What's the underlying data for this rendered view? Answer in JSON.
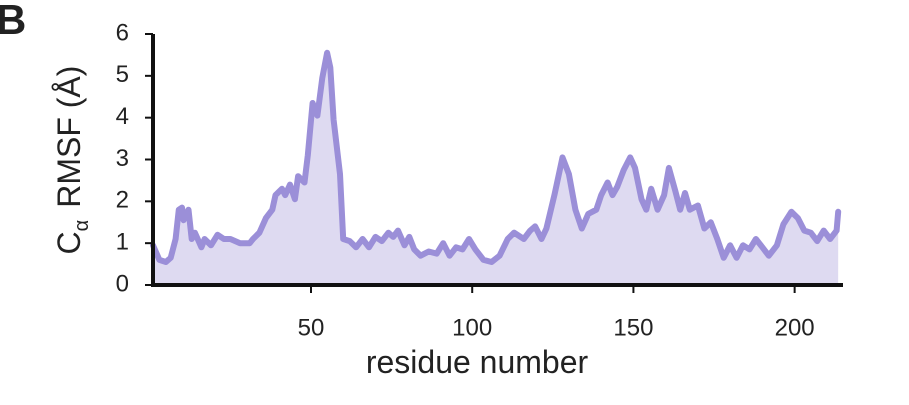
{
  "chart_data": {
    "type": "area_line",
    "panel_label": "B",
    "xlabel": "residue number",
    "ylabel": {
      "text": "C",
      "subscript": "α",
      "rest": "RMSF (Å)"
    },
    "xlim": [
      1,
      215
    ],
    "ylim": [
      0,
      6
    ],
    "xticks": [
      50,
      100,
      150,
      200
    ],
    "yticks": [
      0,
      1,
      2,
      3,
      4,
      5,
      6
    ],
    "color": "#9b8fd8",
    "fill_color": "#dedaf1",
    "x": [
      1,
      3,
      5,
      6.5,
      8,
      9,
      10,
      10.5,
      12,
      13,
      14,
      16,
      17,
      19,
      21,
      23,
      25,
      28,
      31,
      32,
      34,
      36,
      38,
      39,
      41,
      42,
      43.5,
      45,
      46,
      48,
      49,
      50.5,
      52,
      53.5,
      55,
      56,
      57,
      59,
      60,
      62,
      64,
      66,
      68,
      70,
      72,
      74,
      75.5,
      77,
      79,
      80.5,
      82,
      84,
      86.5,
      89,
      91,
      93,
      95,
      97,
      99,
      101,
      103.5,
      106,
      108.5,
      111,
      113,
      116,
      118,
      119.5,
      121.5,
      123,
      125.5,
      128,
      130,
      132,
      134,
      136,
      138.5,
      140,
      142,
      143.5,
      145,
      147,
      149,
      150.5,
      152.5,
      154,
      155.5,
      157.5,
      159.5,
      161,
      163,
      164.5,
      166,
      167.5,
      170,
      172,
      174,
      176,
      178,
      180,
      182,
      184,
      186,
      188,
      190,
      192,
      194.5,
      196.5,
      199,
      201,
      203,
      205,
      207,
      209,
      211,
      213,
      213.5
    ],
    "values": [
      0.95,
      0.6,
      0.55,
      0.65,
      1.1,
      1.8,
      1.85,
      1.55,
      1.8,
      1.1,
      1.25,
      0.9,
      1.1,
      0.95,
      1.2,
      1.1,
      1.1,
      1.0,
      1.0,
      1.1,
      1.25,
      1.6,
      1.8,
      2.15,
      2.3,
      2.15,
      2.4,
      2.05,
      2.6,
      2.45,
      3.1,
      4.35,
      4.05,
      4.95,
      5.55,
      5.2,
      3.95,
      2.65,
      1.1,
      1.05,
      0.9,
      1.1,
      0.9,
      1.15,
      1.05,
      1.25,
      1.15,
      1.3,
      0.95,
      1.15,
      0.85,
      0.7,
      0.8,
      0.75,
      1.0,
      0.7,
      0.9,
      0.85,
      1.1,
      0.85,
      0.6,
      0.55,
      0.7,
      1.1,
      1.25,
      1.1,
      1.3,
      1.4,
      1.1,
      1.35,
      2.15,
      3.05,
      2.65,
      1.8,
      1.35,
      1.7,
      1.8,
      2.15,
      2.45,
      2.15,
      2.35,
      2.75,
      3.05,
      2.8,
      2.05,
      1.8,
      2.3,
      1.8,
      2.15,
      2.8,
      2.25,
      1.8,
      2.2,
      1.8,
      1.9,
      1.35,
      1.5,
      1.1,
      0.65,
      0.95,
      0.65,
      0.95,
      0.85,
      1.1,
      0.9,
      0.7,
      0.95,
      1.45,
      1.75,
      1.6,
      1.3,
      1.25,
      1.05,
      1.3,
      1.1,
      1.3,
      1.75
    ]
  }
}
